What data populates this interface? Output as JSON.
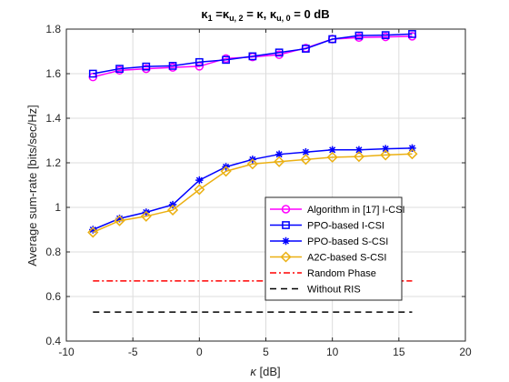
{
  "chart_data": {
    "type": "line",
    "title": {
      "k": "κ",
      "sub1": "1",
      "eq1": " =κ",
      "sub2": "u, 2",
      "eq2": " = κ, κ",
      "sub3": "u, 0",
      "tail": " = 0 dB"
    },
    "xlabel": {
      "sym": "κ",
      "unit": " [dB]"
    },
    "ylabel": "Average sum-rate [bits/sec/Hz]",
    "xlim": [
      -10,
      20
    ],
    "ylim": [
      0.4,
      1.8
    ],
    "xticks": [
      -10,
      -5,
      0,
      5,
      10,
      15,
      20
    ],
    "yticks": [
      0.4,
      0.6,
      0.8,
      1,
      1.2,
      1.4,
      1.6,
      1.8
    ],
    "xtick_labels": [
      "-10",
      "-5",
      "0",
      "5",
      "10",
      "15",
      "20"
    ],
    "ytick_labels": [
      "0.4",
      "0.6",
      "0.8",
      "1",
      "1.2",
      "1.4",
      "1.6",
      "1.8"
    ],
    "grid": true,
    "legend_position": "center-right",
    "x": [
      -8,
      -6,
      -4,
      -2,
      0,
      2,
      4,
      6,
      8,
      10,
      12,
      14,
      16
    ],
    "series": [
      {
        "name": "Algorithm in [17] I-CSI",
        "color": "#ff00ff",
        "marker": "circle",
        "dash": "solid",
        "values": [
          1.585,
          1.615,
          1.622,
          1.628,
          1.633,
          1.668,
          1.675,
          1.685,
          1.715,
          1.755,
          1.762,
          1.765,
          1.768
        ]
      },
      {
        "name": "PPO-based I-CSI",
        "color": "#0000ff",
        "marker": "square",
        "dash": "solid",
        "values": [
          1.6,
          1.622,
          1.632,
          1.635,
          1.652,
          1.662,
          1.678,
          1.695,
          1.712,
          1.755,
          1.771,
          1.773,
          1.778
        ]
      },
      {
        "name": "PPO-based S-CSI",
        "color": "#0000ff",
        "marker": "star",
        "dash": "solid",
        "values": [
          0.9,
          0.95,
          0.978,
          1.012,
          1.122,
          1.182,
          1.215,
          1.238,
          1.248,
          1.258,
          1.258,
          1.263,
          1.266
        ]
      },
      {
        "name": "A2C-based S-CSI",
        "color": "#ebb012",
        "marker": "diamond",
        "dash": "solid",
        "values": [
          0.888,
          0.94,
          0.96,
          0.988,
          1.08,
          1.162,
          1.195,
          1.205,
          1.215,
          1.225,
          1.228,
          1.235,
          1.24
        ]
      },
      {
        "name": "Random Phase",
        "color": "#ff0000",
        "marker": "none",
        "dash": "dashdot",
        "values": [
          0.67,
          0.67,
          0.67,
          0.67,
          0.67,
          0.67,
          0.67,
          0.67,
          0.67,
          0.67,
          0.67,
          0.67,
          0.67
        ]
      },
      {
        "name": "Without RIS",
        "color": "#000000",
        "marker": "none",
        "dash": "dashed",
        "values": [
          0.53,
          0.53,
          0.53,
          0.53,
          0.53,
          0.53,
          0.53,
          0.53,
          0.53,
          0.53,
          0.53,
          0.53,
          0.53
        ]
      }
    ]
  }
}
